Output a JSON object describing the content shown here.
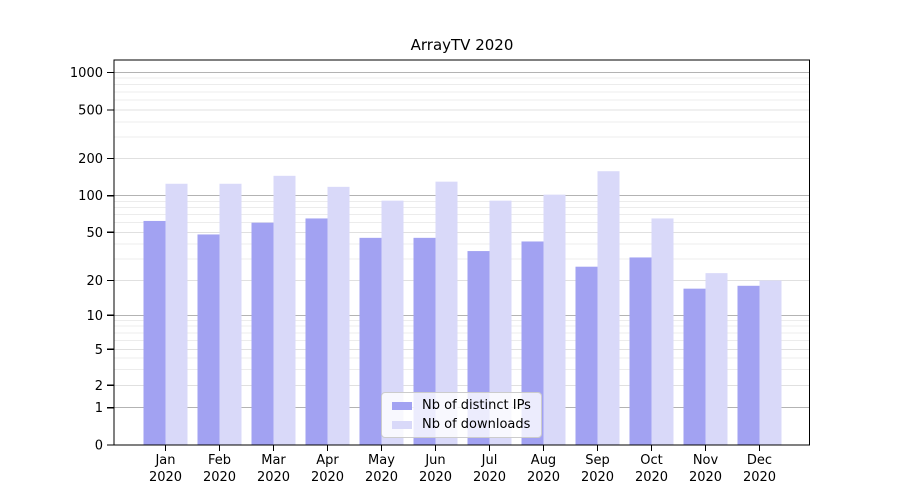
{
  "chart_data": {
    "type": "bar",
    "title": "ArrayTV 2020",
    "categories": [
      "Jan 2020",
      "Feb 2020",
      "Mar 2020",
      "Apr 2020",
      "May 2020",
      "Jun 2020",
      "Jul 2020",
      "Aug 2020",
      "Sep 2020",
      "Oct 2020",
      "Nov 2020",
      "Dec 2020"
    ],
    "series": [
      {
        "name": "Nb of distinct IPs",
        "color": "#a2a2f2",
        "values": [
          62,
          48,
          60,
          65,
          45,
          45,
          35,
          42,
          26,
          31,
          17,
          18
        ]
      },
      {
        "name": "Nb of downloads",
        "color": "#d9d9f9",
        "values": [
          125,
          125,
          145,
          118,
          91,
          130,
          91,
          102,
          158,
          65,
          23,
          20
        ]
      }
    ],
    "y_axis": {
      "scale": "symlog",
      "tick_values": [
        0,
        1,
        2,
        5,
        10,
        20,
        50,
        100,
        200,
        500,
        1000
      ],
      "minor_values": [
        3,
        4,
        6,
        7,
        8,
        9,
        30,
        40,
        60,
        70,
        80,
        90,
        300,
        400,
        600,
        700,
        800,
        900
      ]
    },
    "legend_position": "lower center",
    "grid": true,
    "colors": {
      "major_gridline": "#b3b3b3",
      "subtick_gridline": "#e0e0e0",
      "minor_gridline": "#ececec",
      "axis": "#000000",
      "background": "#ffffff"
    }
  }
}
